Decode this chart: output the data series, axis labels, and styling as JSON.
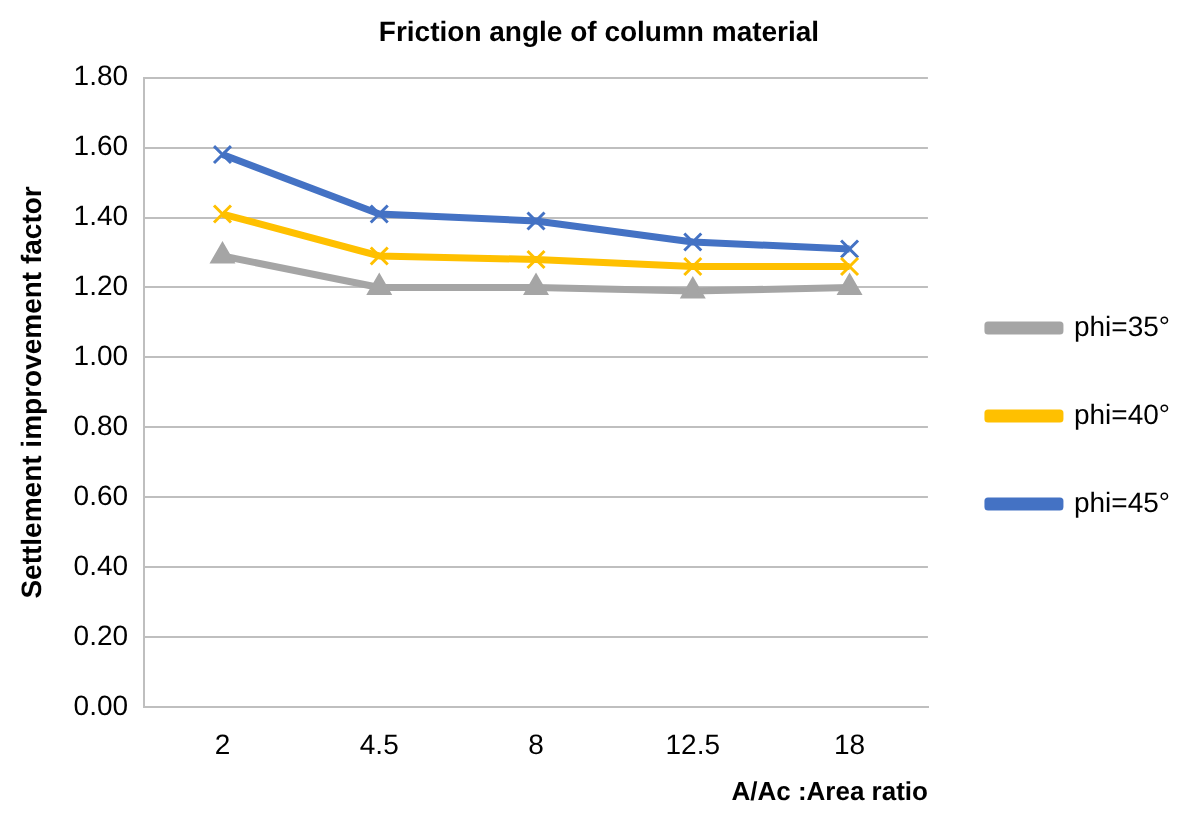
{
  "chart_data": {
    "type": "line",
    "title": "Friction angle of column material",
    "xlabel": "A/Ac :Area ratio",
    "ylabel": "Settlement improvement factor",
    "categories": [
      "2",
      "4.5",
      "8",
      "12.5",
      "18"
    ],
    "series": [
      {
        "name": "phi=35°",
        "color": "#a5a5a5",
        "marker": "triangle",
        "values": [
          1.29,
          1.2,
          1.2,
          1.19,
          1.2
        ]
      },
      {
        "name": "phi=40°",
        "color": "#ffc000",
        "marker": "cross",
        "values": [
          1.41,
          1.29,
          1.28,
          1.26,
          1.26
        ]
      },
      {
        "name": "phi=45°",
        "color": "#4472c4",
        "marker": "cross",
        "values": [
          1.58,
          1.41,
          1.39,
          1.33,
          1.31
        ]
      }
    ],
    "ylim": [
      0,
      1.8
    ],
    "yticks": [
      {
        "value": 0,
        "label": "0.00"
      },
      {
        "value": 0.2,
        "label": "0.20"
      },
      {
        "value": 0.4,
        "label": "0.40"
      },
      {
        "value": 0.6,
        "label": "0.60"
      },
      {
        "value": 0.8,
        "label": "0.80"
      },
      {
        "value": 1,
        "label": "1.00"
      },
      {
        "value": 1.2,
        "label": "1.20"
      },
      {
        "value": 1.4,
        "label": "1.40"
      },
      {
        "value": 1.6,
        "label": "1.60"
      },
      {
        "value": 1.8,
        "label": "1.80"
      }
    ],
    "grid": "y",
    "legend": "right"
  }
}
